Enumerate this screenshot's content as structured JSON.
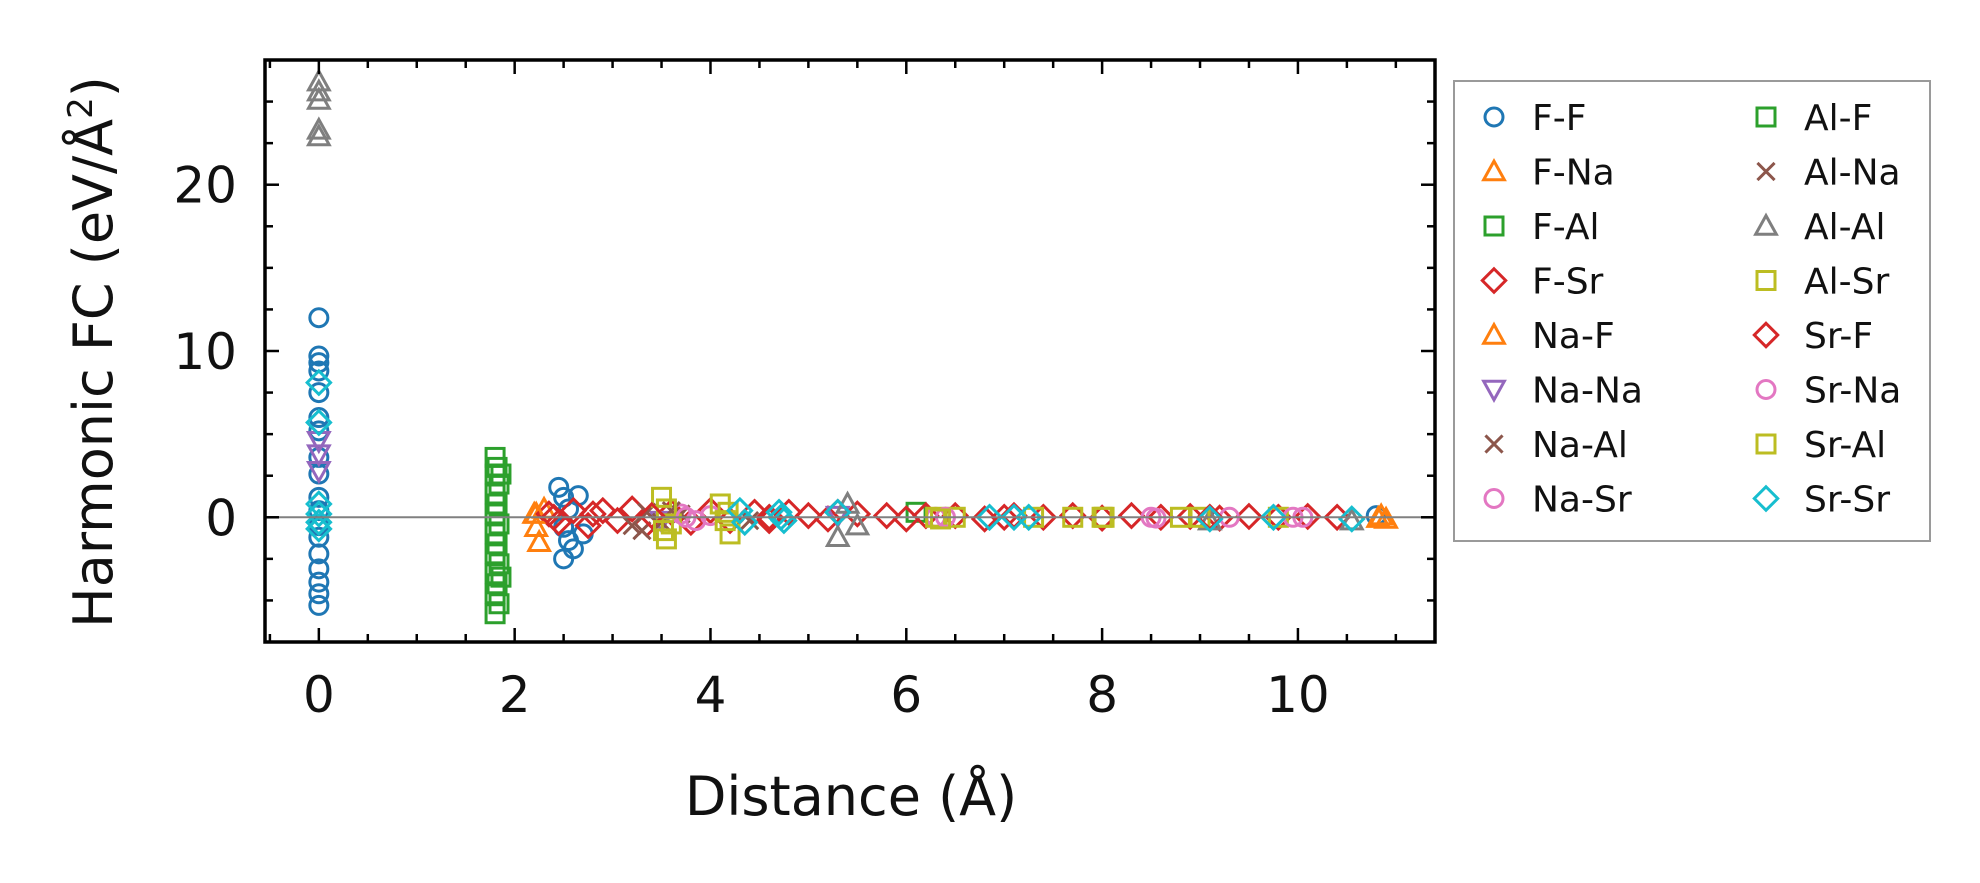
{
  "chart_data": {
    "type": "scatter",
    "xlabel": "Distance (Å)",
    "ylabel_parts": [
      "Harmonic FC (eV/Å",
      "2",
      ")"
    ],
    "xlim": [
      -0.55,
      11.4
    ],
    "ylim": [
      -7.5,
      27.5
    ],
    "x_ticks": [
      0,
      2,
      4,
      6,
      8,
      10
    ],
    "y_ticks": [
      0,
      10,
      20
    ],
    "x_minor_step": 0.5,
    "y_minor_step": 2.5,
    "zero_line": true,
    "grid": false,
    "legend_position": "outside-right",
    "legend_columns": 2,
    "series": [
      {
        "name": "F-F",
        "marker": "circle",
        "color": "#1f77b4",
        "points": [
          [
            0,
            12.0
          ],
          [
            0,
            9.7
          ],
          [
            0,
            9.3
          ],
          [
            0,
            8.8
          ],
          [
            0,
            7.5
          ],
          [
            0,
            6.0
          ],
          [
            0,
            5.2
          ],
          [
            0,
            3.6
          ],
          [
            0,
            2.6
          ],
          [
            0,
            1.2
          ],
          [
            0,
            0.4
          ],
          [
            0,
            -0.5
          ],
          [
            0,
            -1.2
          ],
          [
            0,
            -2.2
          ],
          [
            0,
            -3.1
          ],
          [
            0,
            -3.9
          ],
          [
            0,
            -4.6
          ],
          [
            0,
            -5.3
          ],
          [
            2.45,
            1.8
          ],
          [
            2.5,
            1.2
          ],
          [
            2.55,
            0.5
          ],
          [
            2.5,
            -0.6
          ],
          [
            2.55,
            -1.4
          ],
          [
            2.5,
            -2.5
          ],
          [
            2.6,
            -1.9
          ],
          [
            2.65,
            1.3
          ],
          [
            2.7,
            -1.0
          ],
          [
            10.8,
            0.1
          ]
        ]
      },
      {
        "name": "F-Na",
        "marker": "triangle-up",
        "color": "#ff7f0e",
        "points": [
          [
            2.2,
            0.2
          ],
          [
            2.22,
            -0.6
          ],
          [
            2.25,
            -1.5
          ],
          [
            2.3,
            0.5
          ],
          [
            10.85,
            0.1
          ],
          [
            10.9,
            -0.1
          ]
        ]
      },
      {
        "name": "F-Al",
        "marker": "square",
        "color": "#2ca02c",
        "points": [
          [
            1.8,
            3.6
          ],
          [
            1.82,
            3.0
          ],
          [
            1.8,
            2.6
          ],
          [
            1.84,
            2.0
          ],
          [
            1.8,
            1.4
          ],
          [
            1.82,
            0.8
          ],
          [
            1.8,
            0.2
          ],
          [
            1.84,
            -0.4
          ],
          [
            1.8,
            -1.0
          ],
          [
            1.82,
            -1.6
          ],
          [
            1.8,
            -2.2
          ],
          [
            1.84,
            -2.8
          ],
          [
            1.8,
            -3.4
          ],
          [
            1.82,
            -4.0
          ],
          [
            1.8,
            -4.6
          ],
          [
            1.84,
            -5.2
          ],
          [
            1.8,
            -5.8
          ],
          [
            6.1,
            0.3
          ]
        ]
      },
      {
        "name": "F-Sr",
        "marker": "diamond",
        "color": "#d62728",
        "points": [
          [
            2.35,
            0.2
          ],
          [
            2.45,
            -0.3
          ],
          [
            2.6,
            0.4
          ],
          [
            2.75,
            -0.5
          ],
          [
            2.9,
            0.4
          ],
          [
            3.05,
            -0.2
          ],
          [
            3.2,
            0.5
          ],
          [
            3.35,
            -0.4
          ],
          [
            3.6,
            0.3
          ],
          [
            3.8,
            -0.3
          ],
          [
            4.0,
            0.4
          ],
          [
            4.2,
            -0.2
          ],
          [
            4.45,
            0.3
          ],
          [
            4.6,
            -0.2
          ],
          [
            4.8,
            0.3
          ],
          [
            5.0,
            0.1
          ],
          [
            5.2,
            -0.1
          ],
          [
            5.5,
            0.2
          ],
          [
            5.8,
            0.1
          ],
          [
            6.0,
            -0.1
          ],
          [
            6.2,
            0.1
          ],
          [
            6.5,
            0.1
          ],
          [
            6.8,
            -0.1
          ],
          [
            7.1,
            0.1
          ],
          [
            7.4,
            0.0
          ],
          [
            7.7,
            0.1
          ],
          [
            8.0,
            -0.05
          ],
          [
            8.3,
            0.1
          ],
          [
            8.6,
            0.0
          ],
          [
            8.9,
            0.05
          ],
          [
            9.2,
            -0.05
          ],
          [
            9.5,
            0.05
          ],
          [
            9.8,
            0.0
          ],
          [
            10.1,
            0.05
          ],
          [
            10.4,
            0.0
          ]
        ]
      },
      {
        "name": "Na-F",
        "marker": "triangle-up",
        "color": "#ff7f0e",
        "points": [
          [
            2.22,
            0.2
          ],
          [
            10.82,
            -0.05
          ]
        ]
      },
      {
        "name": "Na-Na",
        "marker": "triangle-down",
        "color": "#9467bd",
        "points": [
          [
            0,
            4.6
          ],
          [
            0,
            3.8
          ],
          [
            0,
            2.8
          ],
          [
            3.5,
            -0.2
          ],
          [
            5.3,
            0.1
          ]
        ]
      },
      {
        "name": "Na-Al",
        "marker": "x",
        "color": "#8c564b",
        "points": [
          [
            3.2,
            -0.5
          ],
          [
            3.35,
            0.3
          ],
          [
            3.5,
            -0.3
          ],
          [
            3.7,
            0.2
          ]
        ]
      },
      {
        "name": "Na-Sr",
        "marker": "circle",
        "color": "#e377c2",
        "points": [
          [
            3.7,
            0.2
          ],
          [
            3.85,
            -0.2
          ],
          [
            4.0,
            0.1
          ],
          [
            6.3,
            0.0
          ],
          [
            8.5,
            0.0
          ],
          [
            9.3,
            0.0
          ],
          [
            10.05,
            0.0
          ]
        ]
      },
      {
        "name": "Al-F",
        "marker": "square",
        "color": "#2ca02c",
        "points": [
          [
            1.86,
            2.6
          ],
          [
            1.86,
            -3.6
          ]
        ]
      },
      {
        "name": "Al-Na",
        "marker": "x",
        "color": "#8c564b",
        "points": [
          [
            3.3,
            -0.8
          ],
          [
            3.6,
            0.4
          ],
          [
            4.4,
            -0.2
          ]
        ]
      },
      {
        "name": "Al-Al",
        "marker": "triangle-up",
        "color": "#7f7f7f",
        "points": [
          [
            0,
            26.2
          ],
          [
            0,
            25.6
          ],
          [
            0,
            25.1
          ],
          [
            0,
            23.3
          ],
          [
            0,
            22.9
          ],
          [
            5.3,
            -1.2
          ],
          [
            5.4,
            0.8
          ],
          [
            5.5,
            -0.5
          ],
          [
            10.55,
            -0.2
          ],
          [
            9.1,
            -0.2
          ]
        ]
      },
      {
        "name": "Al-Sr",
        "marker": "square",
        "color": "#bcbd22",
        "points": [
          [
            3.5,
            1.2
          ],
          [
            3.55,
            0.5
          ],
          [
            3.6,
            -0.4
          ],
          [
            3.55,
            -1.3
          ],
          [
            4.1,
            0.8
          ],
          [
            4.15,
            -0.2
          ],
          [
            4.2,
            -1.0
          ],
          [
            6.3,
            0.0
          ],
          [
            6.5,
            0.0
          ],
          [
            7.3,
            0.0
          ],
          [
            7.7,
            0.0
          ],
          [
            8.0,
            0.0
          ],
          [
            8.8,
            0.0
          ],
          [
            9.0,
            0.0
          ],
          [
            9.8,
            0.0
          ]
        ]
      },
      {
        "name": "Sr-F",
        "marker": "diamond",
        "color": "#d62728",
        "points": [
          [
            2.4,
            0.0
          ],
          [
            2.8,
            0.2
          ],
          [
            3.4,
            0.1
          ],
          [
            4.6,
            0.0
          ],
          [
            5.3,
            0.3
          ],
          [
            7.0,
            0.0
          ],
          [
            9.1,
            0.0
          ]
        ]
      },
      {
        "name": "Sr-Na",
        "marker": "circle",
        "color": "#e377c2",
        "points": [
          [
            3.75,
            0.0
          ],
          [
            6.4,
            0.0
          ],
          [
            8.55,
            -0.05
          ],
          [
            9.95,
            0.0
          ]
        ]
      },
      {
        "name": "Sr-Al",
        "marker": "square",
        "color": "#bcbd22",
        "points": [
          [
            3.52,
            -0.8
          ],
          [
            4.18,
            0.3
          ],
          [
            6.35,
            -0.1
          ],
          [
            8.02,
            0.0
          ]
        ]
      },
      {
        "name": "Sr-Sr",
        "marker": "diamond",
        "color": "#17becf",
        "points": [
          [
            0,
            8.1
          ],
          [
            0,
            5.7
          ],
          [
            0,
            0.8
          ],
          [
            0,
            0.2
          ],
          [
            0,
            -0.3
          ],
          [
            0,
            -0.7
          ],
          [
            4.3,
            0.4
          ],
          [
            4.35,
            -0.3
          ],
          [
            4.7,
            0.3
          ],
          [
            4.75,
            -0.2
          ],
          [
            4.72,
            0.0
          ],
          [
            5.3,
            0.3
          ],
          [
            6.85,
            0.0
          ],
          [
            7.1,
            0.0
          ],
          [
            7.25,
            0.0
          ],
          [
            9.1,
            -0.1
          ],
          [
            9.75,
            0.0
          ],
          [
            10.55,
            -0.1
          ]
        ]
      }
    ]
  }
}
